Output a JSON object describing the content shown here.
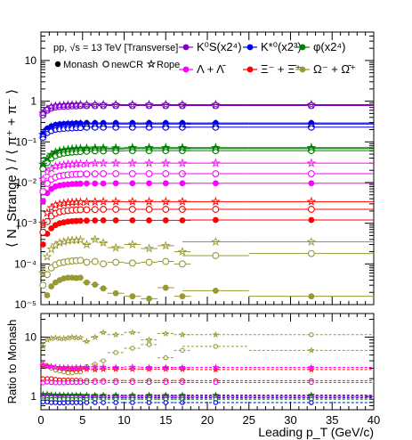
{
  "chart_data": [
    {
      "type": "scatter",
      "panel": "top",
      "annotation": "pp, √s = 13 TeV [Transverse]",
      "ylabel": "⟨ N_Strange ⟩ / ⟨ π⁺ + π⁻ ⟩",
      "yscale": "log",
      "ylim": [
        1e-05,
        50
      ],
      "xlim": [
        0,
        40
      ],
      "yticks": [
        "10⁻⁵",
        "10⁻⁴",
        "10⁻³",
        "10⁻²",
        "10⁻¹",
        "1",
        "10"
      ],
      "legend_species": [
        {
          "label": "K⁰S(x2⁴)",
          "color": "#8000c8"
        },
        {
          "label": "K*⁰(x2³)",
          "color": "#0000e6"
        },
        {
          "label": "φ(x2⁴)",
          "color": "#008000"
        },
        {
          "label": "Λ + Λ̄",
          "color": "#ff00ff"
        },
        {
          "label": "Ξ⁻ + Ξ̄⁺",
          "color": "#ff0000"
        },
        {
          "label": "Ω⁻ + Ω̄⁺",
          "color": "#999933"
        }
      ],
      "legend_models": [
        {
          "label": "Monash",
          "marker": "filled-circle"
        },
        {
          "label": "newCR",
          "marker": "open-circle"
        },
        {
          "label": "Rope",
          "marker": "open-star"
        }
      ],
      "x": [
        0.25,
        0.75,
        1.25,
        1.75,
        2.25,
        2.75,
        3.25,
        3.75,
        4.25,
        4.75,
        5.5,
        6.5,
        7.5,
        9,
        11,
        13,
        15,
        17,
        21,
        32.5
      ],
      "x_half_widths": [
        0.25,
        0.25,
        0.25,
        0.25,
        0.25,
        0.25,
        0.25,
        0.25,
        0.25,
        0.25,
        0.5,
        0.5,
        0.5,
        1,
        1,
        1,
        1,
        1,
        4,
        7.5
      ],
      "series": [
        {
          "species": "K⁰S(x2⁴)",
          "model": "Monash",
          "values": [
            0.48,
            0.62,
            0.7,
            0.74,
            0.76,
            0.77,
            0.78,
            0.79,
            0.79,
            0.8,
            0.8,
            0.8,
            0.8,
            0.8,
            0.8,
            0.8,
            0.8,
            0.8,
            0.8,
            0.8
          ]
        },
        {
          "species": "K⁰S(x2⁴)",
          "model": "newCR",
          "values": [
            0.46,
            0.6,
            0.68,
            0.72,
            0.74,
            0.75,
            0.76,
            0.77,
            0.77,
            0.78,
            0.78,
            0.78,
            0.78,
            0.78,
            0.78,
            0.78,
            0.78,
            0.78,
            0.78,
            0.78
          ]
        },
        {
          "species": "K⁰S(x2⁴)",
          "model": "Rope",
          "values": [
            0.5,
            0.64,
            0.72,
            0.76,
            0.78,
            0.79,
            0.8,
            0.81,
            0.81,
            0.82,
            0.82,
            0.82,
            0.82,
            0.82,
            0.82,
            0.82,
            0.82,
            0.82,
            0.82,
            0.82
          ]
        },
        {
          "species": "K*⁰(x2³)",
          "model": "Monash",
          "values": [
            0.16,
            0.21,
            0.24,
            0.26,
            0.27,
            0.275,
            0.28,
            0.28,
            0.285,
            0.285,
            0.29,
            0.29,
            0.29,
            0.29,
            0.29,
            0.29,
            0.29,
            0.29,
            0.29,
            0.29
          ]
        },
        {
          "species": "K*⁰(x2³)",
          "model": "newCR",
          "values": [
            0.13,
            0.17,
            0.19,
            0.205,
            0.21,
            0.215,
            0.22,
            0.22,
            0.225,
            0.225,
            0.23,
            0.23,
            0.23,
            0.23,
            0.23,
            0.23,
            0.23,
            0.23,
            0.23,
            0.23
          ]
        },
        {
          "species": "K*⁰(x2³)",
          "model": "Rope",
          "values": [
            0.15,
            0.2,
            0.23,
            0.245,
            0.255,
            0.26,
            0.265,
            0.27,
            0.27,
            0.275,
            0.275,
            0.275,
            0.275,
            0.275,
            0.275,
            0.275,
            0.275,
            0.275,
            0.275,
            0.275
          ]
        },
        {
          "species": "φ(x2⁴)",
          "model": "Monash",
          "values": [
            0.025,
            0.035,
            0.045,
            0.052,
            0.056,
            0.059,
            0.061,
            0.063,
            0.064,
            0.065,
            0.066,
            0.067,
            0.067,
            0.067,
            0.068,
            0.068,
            0.068,
            0.068,
            0.068,
            0.068
          ]
        },
        {
          "species": "φ(x2⁴)",
          "model": "newCR",
          "values": [
            0.022,
            0.031,
            0.04,
            0.046,
            0.05,
            0.053,
            0.055,
            0.056,
            0.057,
            0.058,
            0.059,
            0.06,
            0.06,
            0.06,
            0.061,
            0.061,
            0.061,
            0.061,
            0.061,
            0.061
          ]
        },
        {
          "species": "φ(x2⁴)",
          "model": "Rope",
          "values": [
            0.028,
            0.039,
            0.049,
            0.056,
            0.06,
            0.063,
            0.065,
            0.067,
            0.068,
            0.069,
            0.07,
            0.071,
            0.071,
            0.071,
            0.072,
            0.072,
            0.072,
            0.072,
            0.072,
            0.072
          ]
        },
        {
          "species": "Λ + Λ̄",
          "model": "Monash",
          "values": [
            0.0035,
            0.0055,
            0.007,
            0.008,
            0.0085,
            0.0088,
            0.009,
            0.0092,
            0.0093,
            0.0094,
            0.0095,
            0.0095,
            0.0095,
            0.0096,
            0.0096,
            0.0096,
            0.0096,
            0.0096,
            0.0096,
            0.0096
          ]
        },
        {
          "species": "Λ + Λ̄",
          "model": "newCR",
          "values": [
            0.006,
            0.0095,
            0.012,
            0.0135,
            0.0145,
            0.015,
            0.0155,
            0.0158,
            0.016,
            0.0162,
            0.0163,
            0.0164,
            0.0165,
            0.0165,
            0.0165,
            0.0165,
            0.0165,
            0.0165,
            0.0165,
            0.0165
          ]
        },
        {
          "species": "Λ + Λ̄",
          "model": "Rope",
          "values": [
            0.012,
            0.018,
            0.022,
            0.025,
            0.026,
            0.027,
            0.028,
            0.028,
            0.029,
            0.029,
            0.029,
            0.03,
            0.03,
            0.03,
            0.03,
            0.03,
            0.03,
            0.03,
            0.03,
            0.03
          ]
        },
        {
          "species": "Ξ⁻ + Ξ̄⁺",
          "model": "Monash",
          "values": [
            0.0003,
            0.00055,
            0.00075,
            0.0009,
            0.001,
            0.00105,
            0.0011,
            0.00112,
            0.00114,
            0.00115,
            0.00116,
            0.00117,
            0.00118,
            0.00118,
            0.00118,
            0.00118,
            0.00118,
            0.00118,
            0.0012,
            0.0012
          ]
        },
        {
          "species": "Ξ⁻ + Ξ̄⁺",
          "model": "newCR",
          "values": [
            0.0006,
            0.0011,
            0.0015,
            0.00175,
            0.0019,
            0.002,
            0.00205,
            0.0021,
            0.00212,
            0.00215,
            0.00215,
            0.00218,
            0.0022,
            0.0022,
            0.0022,
            0.0022,
            0.0022,
            0.0022,
            0.0022,
            0.0022
          ]
        },
        {
          "species": "Ξ⁻ + Ξ̄⁺",
          "model": "Rope",
          "values": [
            0.001,
            0.0018,
            0.0024,
            0.0028,
            0.003,
            0.0031,
            0.0032,
            0.00325,
            0.0033,
            0.0033,
            0.00335,
            0.00335,
            0.0034,
            0.0034,
            0.0034,
            0.0034,
            0.0034,
            0.0034,
            0.0034,
            0.0034
          ]
        },
        {
          "species": "Ω⁻ + Ω̄⁺",
          "model": "Monash",
          "values": [
            8.5e-06,
            1.7e-05,
            2.8e-05,
            3.5e-05,
            4e-05,
            4.4e-05,
            4.6e-05,
            4.6e-05,
            4.5e-05,
            4.6e-05,
            3.5e-05,
            3.1e-05,
            2.5e-05,
            1.9e-05,
            1.6e-05,
            1.4e-05,
            2.6e-05,
            1.6e-05,
            2.2e-05,
            1.6e-05
          ]
        },
        {
          "species": "Ω⁻ + Ω̄⁺",
          "model": "newCR",
          "values": [
            3e-05,
            5.5e-05,
            8e-05,
            9.5e-05,
            0.000105,
            0.00011,
            0.000115,
            0.000118,
            0.00012,
            0.000122,
            0.00011,
            0.000115,
            0.0001,
            0.00011,
            0.000105,
            0.00011,
            0.000115,
            0.0001,
            0.00016,
            0.00018
          ]
        },
        {
          "species": "Ω⁻ + Ω̄⁺",
          "model": "Rope",
          "values": [
            6e-05,
            0.00015,
            0.00023,
            0.00029,
            0.00033,
            0.00035,
            0.00037,
            0.00038,
            0.00038,
            0.00039,
            0.0003,
            0.0004,
            0.00033,
            0.00025,
            0.0003,
            0.00024,
            0.00028,
            0.0002,
            0.00035,
            0.00035
          ]
        }
      ]
    },
    {
      "type": "scatter",
      "panel": "bottom",
      "ylabel": "Ratio to Monash",
      "xlabel": "Leading p_T (GeV/c)",
      "yscale": "log",
      "ylim": [
        0.6,
        25
      ],
      "xlim": [
        0,
        40
      ],
      "xticks": [
        "0",
        "5",
        "10",
        "15",
        "20",
        "25",
        "30",
        "35",
        "40"
      ],
      "yticks": [
        "1",
        "10"
      ],
      "x": [
        0.25,
        0.75,
        1.25,
        1.75,
        2.25,
        2.75,
        3.25,
        3.75,
        4.25,
        4.75,
        5.5,
        6.5,
        7.5,
        9,
        11,
        13,
        15,
        17,
        21,
        32.5
      ],
      "x_half_widths": [
        0.25,
        0.25,
        0.25,
        0.25,
        0.25,
        0.25,
        0.25,
        0.25,
        0.25,
        0.25,
        0.5,
        0.5,
        0.5,
        1,
        1,
        1,
        1,
        1,
        4,
        7.5
      ],
      "series": [
        {
          "species": "Ω⁻ + Ω̄⁺",
          "model": "Rope",
          "values": [
            7,
            9,
            9.5,
            9.8,
            9.5,
            9.5,
            9.7,
            10,
            9.8,
            9.8,
            8.5,
            10,
            12,
            11,
            12,
            9,
            11.5,
            11,
            11,
            6
          ]
        },
        {
          "species": "Ω⁻ + Ω̄⁺",
          "model": "newCR",
          "values": [
            3.5,
            3.3,
            3.0,
            2.8,
            2.7,
            2.6,
            2.5,
            2.5,
            2.6,
            2.6,
            3.2,
            3.5,
            4,
            5.5,
            6.5,
            7.5,
            4.5,
            6,
            7,
            11
          ]
        },
        {
          "species": "Ξ⁻ + Ξ̄⁺",
          "model": "Rope",
          "values": [
            3.3,
            3.2,
            3.2,
            3.1,
            3.0,
            2.95,
            2.9,
            2.9,
            2.9,
            2.9,
            2.9,
            2.85,
            2.9,
            2.9,
            2.9,
            2.9,
            2.9,
            2.9,
            2.85,
            2.85
          ]
        },
        {
          "species": "Λ + Λ̄",
          "model": "Rope",
          "values": [
            3.4,
            3.3,
            3.2,
            3.1,
            3.1,
            3.1,
            3.1,
            3.05,
            3.1,
            3.1,
            3.1,
            3.15,
            3.15,
            3.1,
            3.15,
            3.1,
            3.1,
            3.1,
            3.1,
            3.1
          ]
        },
        {
          "species": "Ξ⁻ + Ξ̄⁺",
          "model": "newCR",
          "values": [
            2.0,
            2.0,
            2.0,
            1.95,
            1.9,
            1.9,
            1.9,
            1.88,
            1.88,
            1.87,
            1.86,
            1.86,
            1.86,
            1.86,
            1.86,
            1.86,
            1.86,
            1.86,
            1.85,
            1.85
          ]
        },
        {
          "species": "Λ + Λ̄",
          "model": "newCR",
          "values": [
            1.7,
            1.75,
            1.72,
            1.7,
            1.7,
            1.7,
            1.72,
            1.72,
            1.72,
            1.72,
            1.72,
            1.73,
            1.74,
            1.72,
            1.72,
            1.72,
            1.72,
            1.72,
            1.72,
            1.72
          ]
        },
        {
          "species": "K⁰S(x2⁴)",
          "model": "Rope",
          "values": [
            1.04,
            1.03,
            1.03,
            1.03,
            1.03,
            1.03,
            1.03,
            1.03,
            1.03,
            1.03,
            1.03,
            1.03,
            1.03,
            1.03,
            1.03,
            1.03,
            1.03,
            1.03,
            1.03,
            1.03
          ]
        },
        {
          "species": "φ(x2⁴)",
          "model": "Rope",
          "values": [
            1.1,
            1.1,
            1.08,
            1.07,
            1.07,
            1.06,
            1.06,
            1.06,
            1.06,
            1.06,
            1.06,
            1.06,
            1.06,
            1.06,
            1.06,
            1.06,
            1.06,
            1.06,
            1.06,
            1.06
          ]
        },
        {
          "species": "K*⁰(x2³)",
          "model": "Rope",
          "values": [
            0.95,
            0.95,
            0.95,
            0.95,
            0.95,
            0.95,
            0.95,
            0.95,
            0.95,
            0.95,
            0.95,
            0.95,
            0.95,
            0.95,
            0.95,
            0.95,
            0.95,
            0.95,
            0.95,
            0.95
          ]
        },
        {
          "species": "K⁰S(x2⁴)",
          "model": "newCR",
          "values": [
            0.96,
            0.97,
            0.97,
            0.97,
            0.97,
            0.97,
            0.97,
            0.97,
            0.97,
            0.97,
            0.97,
            0.97,
            0.97,
            0.97,
            0.97,
            0.97,
            0.97,
            0.97,
            0.97,
            0.97
          ]
        },
        {
          "species": "φ(x2⁴)",
          "model": "newCR",
          "values": [
            0.88,
            0.89,
            0.89,
            0.89,
            0.89,
            0.9,
            0.9,
            0.89,
            0.89,
            0.89,
            0.89,
            0.9,
            0.9,
            0.9,
            0.9,
            0.9,
            0.9,
            0.9,
            0.9,
            0.9
          ]
        },
        {
          "species": "K*⁰(x2³)",
          "model": "newCR",
          "values": [
            0.81,
            0.81,
            0.79,
            0.79,
            0.78,
            0.78,
            0.79,
            0.79,
            0.79,
            0.79,
            0.79,
            0.79,
            0.79,
            0.79,
            0.79,
            0.79,
            0.79,
            0.79,
            0.79,
            0.79
          ]
        }
      ]
    }
  ]
}
